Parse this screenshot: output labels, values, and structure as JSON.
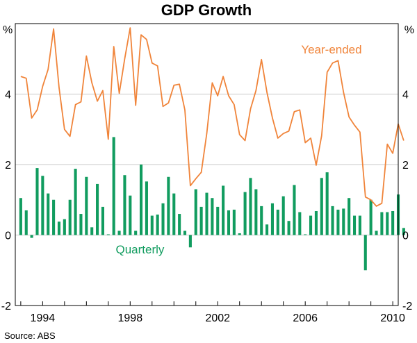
{
  "chart_data": {
    "type": "bar",
    "title": "GDP Growth",
    "source": "Source: ABS",
    "ylabel_left": "%",
    "ylabel_right": "%",
    "ylim": [
      -2,
      6
    ],
    "yticks": [
      {
        "value": -2,
        "label": "-2"
      },
      {
        "value": 0,
        "label": "0"
      },
      {
        "value": 2,
        "label": "2"
      },
      {
        "value": 4,
        "label": "4"
      }
    ],
    "x_range": [
      1992.75,
      2010.25
    ],
    "xticks": [
      {
        "value": 1994,
        "label": "1994"
      },
      {
        "value": 1998,
        "label": "1998"
      },
      {
        "value": 2002,
        "label": "2002"
      },
      {
        "value": 2006,
        "label": "2006"
      },
      {
        "value": 2010,
        "label": "2010"
      }
    ],
    "x_start": 1993.0,
    "x_step": 0.25,
    "colors": {
      "quarterly": "#119c5f",
      "year_ended": "#f0843a"
    },
    "series": [
      {
        "name": "Quarterly",
        "type": "bar",
        "values": [
          1.05,
          0.7,
          -0.08,
          1.9,
          1.68,
          1.18,
          1.0,
          0.38,
          0.45,
          1.0,
          1.88,
          0.6,
          1.65,
          0.22,
          1.45,
          0.8,
          0.02,
          2.78,
          0.12,
          1.7,
          1.12,
          0.12,
          2.0,
          1.52,
          0.55,
          0.58,
          0.9,
          1.65,
          1.18,
          0.6,
          0.12,
          -0.35,
          1.3,
          0.8,
          1.2,
          1.05,
          0.8,
          1.4,
          0.7,
          0.72,
          0.05,
          1.22,
          1.62,
          1.3,
          0.82,
          0.3,
          0.9,
          0.72,
          1.1,
          0.4,
          1.42,
          0.65,
          0.02,
          0.55,
          0.68,
          1.62,
          1.78,
          0.82,
          0.72,
          0.75,
          1.05,
          0.55,
          0.55,
          -1.0,
          1.0,
          0.12,
          0.65,
          0.65,
          0.68,
          1.15,
          0.2
        ]
      },
      {
        "name": "Year-ended",
        "type": "line",
        "values": [
          4.5,
          4.45,
          3.32,
          3.55,
          4.22,
          4.7,
          5.85,
          4.18,
          3.0,
          2.8,
          3.7,
          3.78,
          5.08,
          4.32,
          3.8,
          4.1,
          2.72,
          5.35,
          4.02,
          5.0,
          5.88,
          3.68,
          5.68,
          5.55,
          4.88,
          4.8,
          3.65,
          3.75,
          4.25,
          4.28,
          3.55,
          1.4,
          1.6,
          1.78,
          2.88,
          4.32,
          3.95,
          4.5,
          3.95,
          3.7,
          2.85,
          2.68,
          3.58,
          4.1,
          4.98,
          4.05,
          3.32,
          2.75,
          2.88,
          2.95,
          3.5,
          3.55,
          2.62,
          2.75,
          1.98,
          2.82,
          4.62,
          4.88,
          4.95,
          4.05,
          3.35,
          3.12,
          2.92,
          1.08,
          1.0,
          0.82,
          0.9,
          2.58,
          2.32,
          3.15,
          2.68
        ]
      }
    ],
    "annotations": [
      {
        "text": "Year-ended",
        "x": 2007.2,
        "y": 5.15,
        "series": "Year-ended"
      },
      {
        "text": "Quarterly",
        "x": 1998.45,
        "y": -0.52,
        "series": "Quarterly"
      }
    ]
  }
}
